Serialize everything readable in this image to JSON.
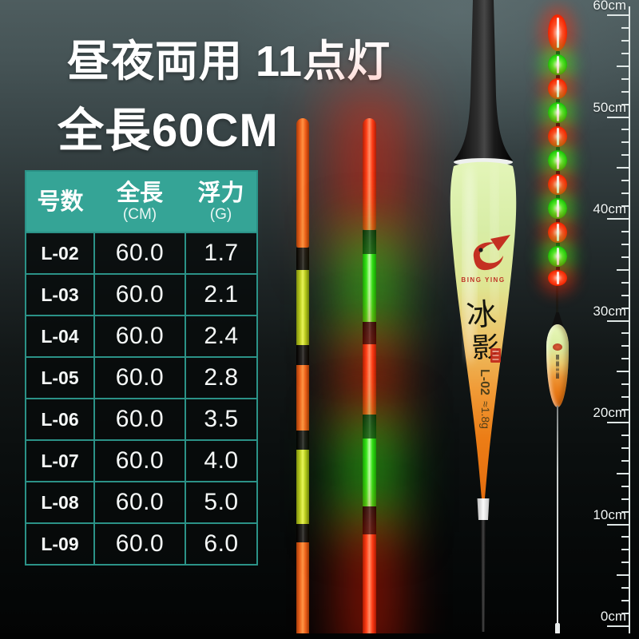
{
  "title": {
    "line1": "昼夜両用 11点灯",
    "line2": "全長60CM"
  },
  "spec_table": {
    "columns": [
      {
        "label": "号数",
        "unit": ""
      },
      {
        "label": "全長",
        "unit": "(CM)"
      },
      {
        "label": "浮力",
        "unit": "(G)"
      }
    ],
    "rows": [
      {
        "model": "L-02",
        "length": "60.0",
        "buoyancy": "1.7"
      },
      {
        "model": "L-03",
        "length": "60.0",
        "buoyancy": "2.1"
      },
      {
        "model": "L-04",
        "length": "60.0",
        "buoyancy": "2.4"
      },
      {
        "model": "L-05",
        "length": "60.0",
        "buoyancy": "2.8"
      },
      {
        "model": "L-06",
        "length": "60.0",
        "buoyancy": "3.5"
      },
      {
        "model": "L-07",
        "length": "60.0",
        "buoyancy": "4.0"
      },
      {
        "model": "L-08",
        "length": "60.0",
        "buoyancy": "5.0"
      },
      {
        "model": "L-09",
        "length": "60.0",
        "buoyancy": "6.0"
      }
    ]
  },
  "day_tail": {
    "segments": [
      {
        "color": "orange",
        "h": 162,
        "tip": true
      },
      {
        "color": "black",
        "h": 28
      },
      {
        "color": "yellow",
        "h": 94
      },
      {
        "color": "black",
        "h": 25
      },
      {
        "color": "orange",
        "h": 82
      },
      {
        "color": "black",
        "h": 24
      },
      {
        "color": "yellow",
        "h": 93
      },
      {
        "color": "black",
        "h": 23
      },
      {
        "color": "orange",
        "h": 121
      }
    ]
  },
  "night_tail": {
    "segments": [
      {
        "color": "red",
        "h": 140,
        "tip": true
      },
      {
        "color": "black",
        "h": 30
      },
      {
        "color": "green",
        "h": 85
      },
      {
        "color": "black",
        "h": 28
      },
      {
        "color": "red",
        "h": 88
      },
      {
        "color": "black",
        "h": 30
      },
      {
        "color": "green",
        "h": 85
      },
      {
        "color": "black",
        "h": 35
      },
      {
        "color": "red",
        "h": 131
      }
    ]
  },
  "main_float": {
    "brand_logo_text": "BING YING",
    "brand_vertical_char1": "冰",
    "brand_vertical_char2": "影",
    "model_label": "L-02",
    "weight_label": "≈1.8g"
  },
  "mini_float": {
    "dots": [
      {
        "color": "red",
        "h": 46
      },
      {
        "color": "green",
        "h": 26
      },
      {
        "color": "red",
        "h": 26
      },
      {
        "color": "green",
        "h": 26
      },
      {
        "color": "red",
        "h": 26
      },
      {
        "color": "green",
        "h": 26
      },
      {
        "color": "red",
        "h": 26
      },
      {
        "color": "green",
        "h": 26
      },
      {
        "color": "red",
        "h": 26
      },
      {
        "color": "green",
        "h": 26
      },
      {
        "color": "red",
        "h": 20
      }
    ]
  },
  "ruler": {
    "labels": [
      "60cm",
      "50cm",
      "40cm",
      "30cm",
      "20cm",
      "10cm",
      "0cm"
    ]
  },
  "colors": {
    "header_teal": "#35a496",
    "table_border": "#2b9287",
    "glow_red": "#ff2a08",
    "glow_green": "#2fe81a",
    "day_orange": "#f06c20",
    "day_yellow": "#d8e636"
  }
}
